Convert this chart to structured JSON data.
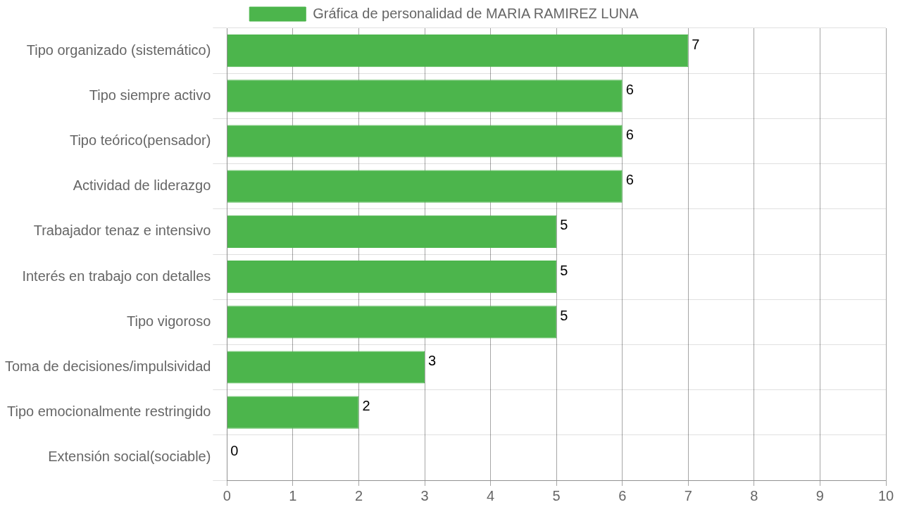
{
  "chart_data": {
    "type": "bar",
    "orientation": "horizontal",
    "categories": [
      "Tipo organizado (sistemático)",
      "Tipo siempre activo",
      "Tipo teórico(pensador)",
      "Actividad de liderazgo",
      "Trabajador tenaz e intensivo",
      "Interés en trabajo con detalles",
      "Tipo vigoroso",
      "Toma de decisiones/impulsividad",
      "Tipo emocionalmente restringido",
      "Extensión social(sociable)"
    ],
    "series": [
      {
        "name": "Gráfica de personalidad de MARIA RAMIREZ LUNA",
        "color": "#4cb54c",
        "values": [
          7,
          6,
          6,
          6,
          5,
          5,
          5,
          3,
          2,
          0
        ]
      }
    ],
    "xlim": [
      0,
      10
    ],
    "xticks": [
      0,
      1,
      2,
      3,
      4,
      5,
      6,
      7,
      8,
      9,
      10
    ],
    "grid": true,
    "legend": "top",
    "data_labels": true
  }
}
